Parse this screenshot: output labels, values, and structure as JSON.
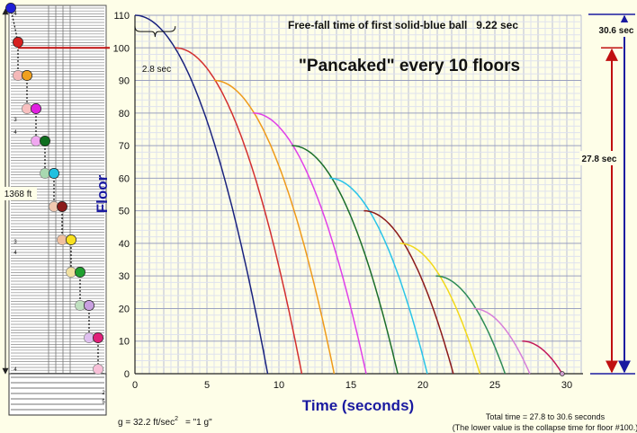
{
  "chart_data": {
    "type": "line",
    "title": "\"Pancaked\" every 10 floors",
    "subtitle_label": "Free-fall time of first solid-blue ball",
    "subtitle_value": "9.22 sec",
    "xlabel": "Time  (seconds)",
    "ylabel": "Floor",
    "xlim": [
      0,
      31
    ],
    "ylim": [
      0,
      110
    ],
    "x_ticks": [
      0,
      5,
      10,
      15,
      20,
      25,
      30
    ],
    "y_ticks": [
      0,
      10,
      20,
      30,
      40,
      50,
      60,
      70,
      80,
      90,
      100,
      110
    ],
    "grid": true,
    "series": [
      {
        "start_time": 0.0,
        "start_floor": 110,
        "color": "#1a237e"
      },
      {
        "start_time": 2.8,
        "start_floor": 100,
        "color": "#d32f2f"
      },
      {
        "start_time": 5.5,
        "start_floor": 90,
        "color": "#ef9a1a"
      },
      {
        "start_time": 8.2,
        "start_floor": 80,
        "color": "#e040e8"
      },
      {
        "start_time": 10.9,
        "start_floor": 70,
        "color": "#1b6e2a"
      },
      {
        "start_time": 13.5,
        "start_floor": 60,
        "color": "#29c4e8"
      },
      {
        "start_time": 15.9,
        "start_floor": 50,
        "color": "#8b1a1a"
      },
      {
        "start_time": 18.4,
        "start_floor": 40,
        "color": "#f2d81a"
      },
      {
        "start_time": 20.9,
        "start_floor": 30,
        "color": "#2e8b57"
      },
      {
        "start_time": 23.5,
        "start_floor": 20,
        "color": "#d67fd9"
      },
      {
        "start_time": 26.9,
        "start_floor": 10,
        "color": "#c2185b"
      }
    ],
    "annotations": {
      "gap_label": "2.8 sec",
      "total_label": "30.6 sec",
      "collapse_label": "27.8 sec",
      "height_label": "1368  ft",
      "gravity_prefix": "g = 32.2  ft/sec",
      "gravity_exp": "2",
      "gravity_suffix": "=  \"1 g\"",
      "footnote_line1": "Total time = 27.8 to 30.6 seconds",
      "footnote_line2": "(The lower value is the collapse time for floor #100.)"
    }
  },
  "tower": {
    "balls": [
      {
        "color": "#1f1fd6",
        "outline": false
      },
      {
        "color": "#d61f1f",
        "outline": false
      },
      {
        "color": "#f4b8b8",
        "outline": true
      },
      {
        "color": "#f0a020",
        "outline": false
      },
      {
        "color": "#f8c0c0",
        "outline": true
      },
      {
        "color": "#e020e0",
        "outline": false
      },
      {
        "color": "#f0a8f0",
        "outline": true
      },
      {
        "color": "#0f6e1f",
        "outline": false
      },
      {
        "color": "#a8d8b0",
        "outline": true
      },
      {
        "color": "#20c0e0",
        "outline": false
      },
      {
        "color": "#f0c8b0",
        "outline": true
      },
      {
        "color": "#8b1a1a",
        "outline": false
      },
      {
        "color": "#f0c0a0",
        "outline": true
      },
      {
        "color": "#f8e020",
        "outline": false
      },
      {
        "color": "#f0e0a0",
        "outline": true
      },
      {
        "color": "#20a030",
        "outline": false
      },
      {
        "color": "#c0e0c0",
        "outline": true
      },
      {
        "color": "#c8a0e0",
        "outline": false
      },
      {
        "color": "#e0c0f0",
        "outline": true
      },
      {
        "color": "#e0207a",
        "outline": false
      },
      {
        "color": "#f8c0d8",
        "outline": true
      }
    ],
    "markers": [
      "4",
      "3",
      "4",
      "3",
      "4",
      "4",
      "2",
      "5"
    ]
  }
}
